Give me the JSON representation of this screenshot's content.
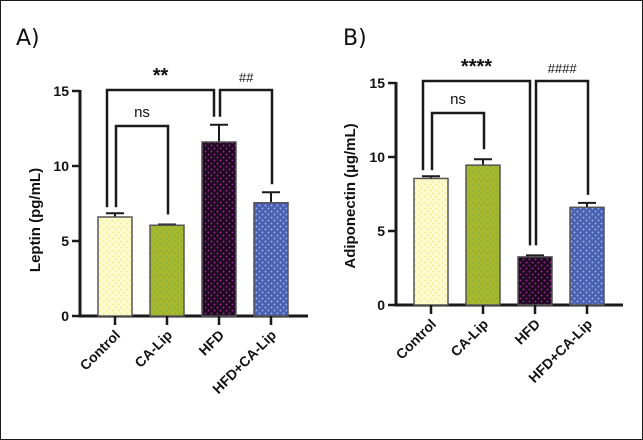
{
  "figure": {
    "panels": [
      "A)",
      "B)"
    ]
  },
  "chart_data": [
    {
      "type": "bar",
      "panel": "A)",
      "title": "",
      "xlabel": "",
      "ylabel": "Leptin (pg/mL)",
      "ylim": [
        0,
        15
      ],
      "yticks": [
        0,
        5,
        10,
        15
      ],
      "categories": [
        "Control",
        "CA-Lip",
        "HFD",
        "HFD+CA-Lip"
      ],
      "values": [
        6.6,
        6.05,
        11.6,
        7.55
      ],
      "errors": [
        0.25,
        0.05,
        1.15,
        0.7
      ],
      "colors": [
        "#fdfbd0",
        "#a8b82a",
        "#1a0b1f",
        "#4b5fb0"
      ],
      "dot_colors": [
        "#f3ec8a",
        "#7fb04a",
        "#a0208f",
        "#8fb0e8"
      ],
      "grid": false,
      "annotations": [
        {
          "label": "**",
          "from": "Control",
          "to": "HFD",
          "level": "top"
        },
        {
          "label": "##",
          "from": "HFD",
          "to": "HFD+CA-Lip",
          "level": "top"
        },
        {
          "label": "ns",
          "from": "Control",
          "to": "CA-Lip",
          "level": "lower"
        }
      ]
    },
    {
      "type": "bar",
      "panel": "B)",
      "title": "",
      "xlabel": "",
      "ylabel": "Adiponectin (µg/mL)",
      "ylim": [
        0,
        15
      ],
      "yticks": [
        0,
        5,
        10,
        15
      ],
      "categories": [
        "Control",
        "CA-Lip",
        "HFD",
        "HFD+CA-Lip"
      ],
      "values": [
        8.55,
        9.45,
        3.25,
        6.6
      ],
      "errors": [
        0.15,
        0.4,
        0.1,
        0.3
      ],
      "colors": [
        "#fdfbd0",
        "#a8b82a",
        "#1a0b1f",
        "#4b5fb0"
      ],
      "dot_colors": [
        "#f3ec8a",
        "#7fb04a",
        "#a0208f",
        "#8fb0e8"
      ],
      "grid": false,
      "annotations": [
        {
          "label": "****",
          "from": "Control",
          "to": "HFD",
          "level": "top"
        },
        {
          "label": "####",
          "from": "HFD",
          "to": "HFD+CA-Lip",
          "level": "top"
        },
        {
          "label": "ns",
          "from": "Control",
          "to": "CA-Lip",
          "level": "lower"
        }
      ]
    }
  ]
}
